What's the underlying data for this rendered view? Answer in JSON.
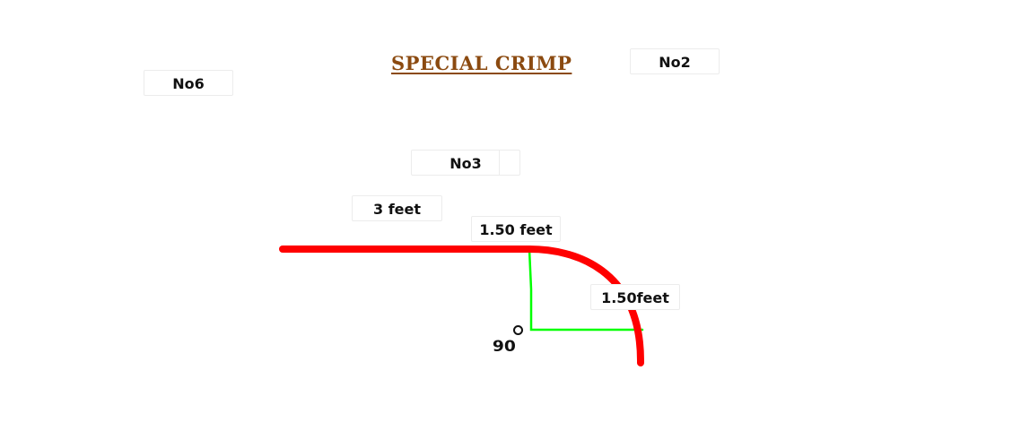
{
  "title": "SPECIAL CRIMP",
  "labels": {
    "no6": "No6",
    "no2": "No2",
    "no3": "No3",
    "straight_length": "3 feet",
    "radius_top": "1.50 feet",
    "radius_side": "1.50feet",
    "angle": "90"
  },
  "colors": {
    "title": "#8b4a10",
    "profile": "#ff0000",
    "guide": "#00ff00"
  }
}
